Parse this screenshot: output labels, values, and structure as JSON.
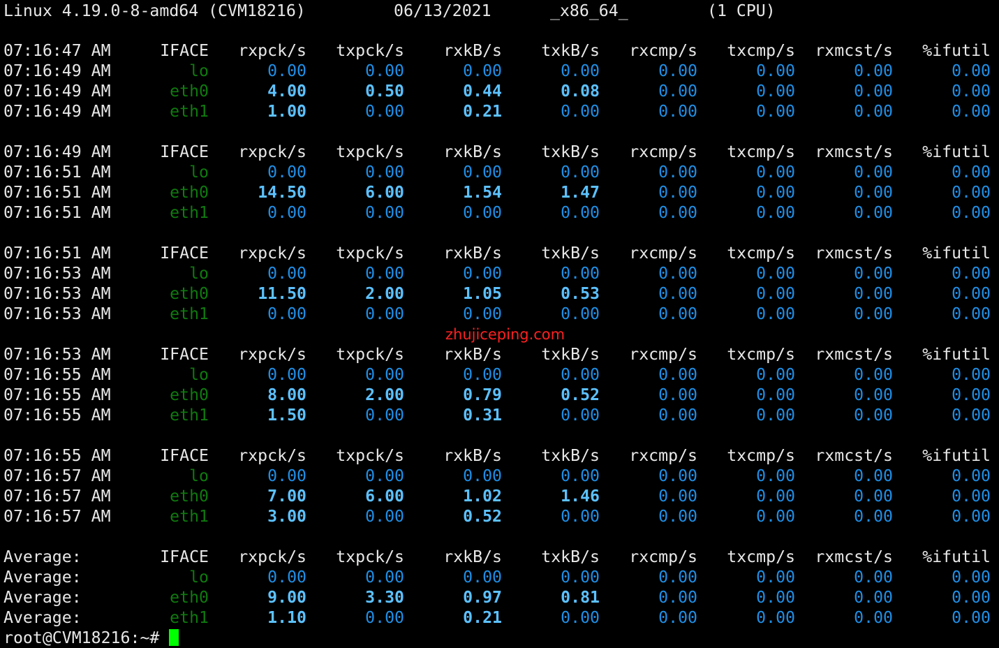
{
  "header": {
    "kernel": "Linux 4.19.0-8-amd64 (CVM18216)",
    "date": "06/13/2021",
    "arch": "_x86_64_",
    "cpus": "(1 CPU)"
  },
  "columns": [
    "IFACE",
    "rxpck/s",
    "txpck/s",
    "rxkB/s",
    "txkB/s",
    "rxcmp/s",
    "txcmp/s",
    "rxmcst/s",
    "%ifutil"
  ],
  "blocks": [
    {
      "header_time": "07:16:47 AM",
      "rows": [
        {
          "time": "07:16:49 AM",
          "iface": "lo",
          "values": [
            "0.00",
            "0.00",
            "0.00",
            "0.00",
            "0.00",
            "0.00",
            "0.00",
            "0.00"
          ]
        },
        {
          "time": "07:16:49 AM",
          "iface": "eth0",
          "values": [
            "4.00",
            "0.50",
            "0.44",
            "0.08",
            "0.00",
            "0.00",
            "0.00",
            "0.00"
          ]
        },
        {
          "time": "07:16:49 AM",
          "iface": "eth1",
          "values": [
            "1.00",
            "0.00",
            "0.21",
            "0.00",
            "0.00",
            "0.00",
            "0.00",
            "0.00"
          ]
        }
      ]
    },
    {
      "header_time": "07:16:49 AM",
      "rows": [
        {
          "time": "07:16:51 AM",
          "iface": "lo",
          "values": [
            "0.00",
            "0.00",
            "0.00",
            "0.00",
            "0.00",
            "0.00",
            "0.00",
            "0.00"
          ]
        },
        {
          "time": "07:16:51 AM",
          "iface": "eth0",
          "values": [
            "14.50",
            "6.00",
            "1.54",
            "1.47",
            "0.00",
            "0.00",
            "0.00",
            "0.00"
          ]
        },
        {
          "time": "07:16:51 AM",
          "iface": "eth1",
          "values": [
            "0.00",
            "0.00",
            "0.00",
            "0.00",
            "0.00",
            "0.00",
            "0.00",
            "0.00"
          ]
        }
      ]
    },
    {
      "header_time": "07:16:51 AM",
      "rows": [
        {
          "time": "07:16:53 AM",
          "iface": "lo",
          "values": [
            "0.00",
            "0.00",
            "0.00",
            "0.00",
            "0.00",
            "0.00",
            "0.00",
            "0.00"
          ]
        },
        {
          "time": "07:16:53 AM",
          "iface": "eth0",
          "values": [
            "11.50",
            "2.00",
            "1.05",
            "0.53",
            "0.00",
            "0.00",
            "0.00",
            "0.00"
          ]
        },
        {
          "time": "07:16:53 AM",
          "iface": "eth1",
          "values": [
            "0.00",
            "0.00",
            "0.00",
            "0.00",
            "0.00",
            "0.00",
            "0.00",
            "0.00"
          ]
        }
      ]
    },
    {
      "header_time": "07:16:53 AM",
      "rows": [
        {
          "time": "07:16:55 AM",
          "iface": "lo",
          "values": [
            "0.00",
            "0.00",
            "0.00",
            "0.00",
            "0.00",
            "0.00",
            "0.00",
            "0.00"
          ]
        },
        {
          "time": "07:16:55 AM",
          "iface": "eth0",
          "values": [
            "8.00",
            "2.00",
            "0.79",
            "0.52",
            "0.00",
            "0.00",
            "0.00",
            "0.00"
          ]
        },
        {
          "time": "07:16:55 AM",
          "iface": "eth1",
          "values": [
            "1.50",
            "0.00",
            "0.31",
            "0.00",
            "0.00",
            "0.00",
            "0.00",
            "0.00"
          ]
        }
      ]
    },
    {
      "header_time": "07:16:55 AM",
      "rows": [
        {
          "time": "07:16:57 AM",
          "iface": "lo",
          "values": [
            "0.00",
            "0.00",
            "0.00",
            "0.00",
            "0.00",
            "0.00",
            "0.00",
            "0.00"
          ]
        },
        {
          "time": "07:16:57 AM",
          "iface": "eth0",
          "values": [
            "7.00",
            "6.00",
            "1.02",
            "1.46",
            "0.00",
            "0.00",
            "0.00",
            "0.00"
          ]
        },
        {
          "time": "07:16:57 AM",
          "iface": "eth1",
          "values": [
            "3.00",
            "0.00",
            "0.52",
            "0.00",
            "0.00",
            "0.00",
            "0.00",
            "0.00"
          ]
        }
      ]
    },
    {
      "header_time": "Average:",
      "rows": [
        {
          "time": "Average:",
          "iface": "lo",
          "values": [
            "0.00",
            "0.00",
            "0.00",
            "0.00",
            "0.00",
            "0.00",
            "0.00",
            "0.00"
          ]
        },
        {
          "time": "Average:",
          "iface": "eth0",
          "values": [
            "9.00",
            "3.30",
            "0.97",
            "0.81",
            "0.00",
            "0.00",
            "0.00",
            "0.00"
          ]
        },
        {
          "time": "Average:",
          "iface": "eth1",
          "values": [
            "1.10",
            "0.00",
            "0.21",
            "0.00",
            "0.00",
            "0.00",
            "0.00",
            "0.00"
          ]
        }
      ]
    }
  ],
  "prompt": "root@CVM18216:~#",
  "watermark": "zhujiceping.com",
  "colors": {
    "background": "#000000",
    "text": "#e8e8e8",
    "iface": "#0f7a0f",
    "zero_value": "#1f8fe6",
    "nonzero_value": "#5cc1ff",
    "watermark": "#ff2020",
    "cursor": "#00ff00"
  }
}
